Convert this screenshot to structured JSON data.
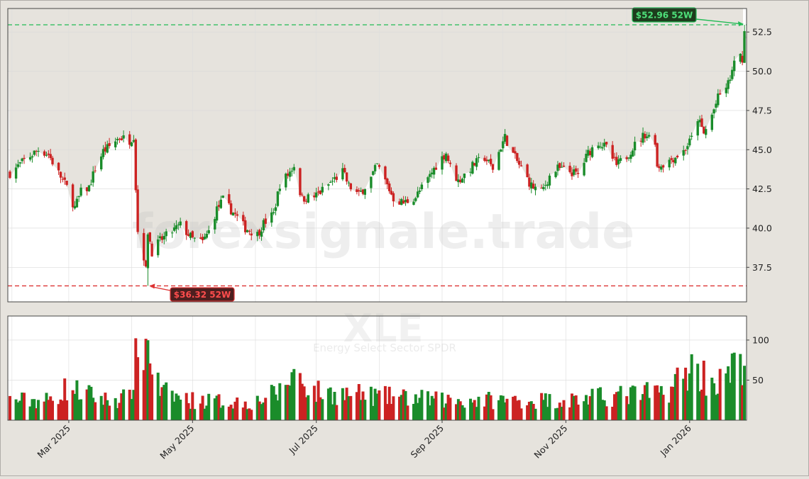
{
  "chart_data": {
    "type": "candlestick",
    "ticker": "XLE",
    "ticker_name": "Energy Select Sector SPDR",
    "watermark": "forexsignale.trade",
    "y_ticks": [
      "37.5",
      "40.0",
      "42.5",
      "45.0",
      "47.5",
      "50.0",
      "52.5"
    ],
    "vol_ticks": [
      "50",
      "100"
    ],
    "x_ticks": [
      {
        "label": "Mar 2025",
        "date": "2025-03-01"
      },
      {
        "label": "May 2025",
        "date": "2025-05-01"
      },
      {
        "label": "Jul 2025",
        "date": "2025-07-01"
      },
      {
        "label": "Sep 2025",
        "date": "2025-09-01"
      },
      {
        "label": "Nov 2025",
        "date": "2025-11-01"
      },
      {
        "label": "Jan 2026",
        "date": "2026-01-01"
      }
    ],
    "price_ylim": [
      35.3,
      54.0
    ],
    "volume_ylim": [
      0,
      130
    ],
    "x_range": [
      "2025-01-31",
      "2026-01-28"
    ],
    "high_52w": {
      "value": 52.96,
      "label": "$52.96 52W",
      "color": "#22bb55"
    },
    "low_52w": {
      "value": 36.32,
      "label": "$36.32 52W",
      "color": "#dd3333"
    },
    "colors": {
      "up": "#1a8c2a",
      "down": "#cc2222"
    },
    "price_path": [
      [
        "2025-01-31",
        43.5
      ],
      [
        "2025-02-07",
        44.3
      ],
      [
        "2025-02-14",
        45.0
      ],
      [
        "2025-02-19",
        44.7
      ],
      [
        "2025-02-24",
        43.5
      ],
      [
        "2025-02-28",
        42.6
      ],
      [
        "2025-03-04",
        41.3
      ],
      [
        "2025-03-07",
        42.3
      ],
      [
        "2025-03-11",
        42.6
      ],
      [
        "2025-03-14",
        43.8
      ],
      [
        "2025-03-18",
        44.9
      ],
      [
        "2025-03-21",
        45.2
      ],
      [
        "2025-03-26",
        45.8
      ],
      [
        "2025-03-31",
        45.6
      ],
      [
        "2025-04-02",
        45.9
      ],
      [
        "2025-04-03",
        42.6
      ],
      [
        "2025-04-04",
        39.8
      ],
      [
        "2025-04-07",
        38.2
      ],
      [
        "2025-04-08",
        37.3
      ],
      [
        "2025-04-09",
        39.8
      ],
      [
        "2025-04-11",
        38.5
      ],
      [
        "2025-04-15",
        39.2
      ],
      [
        "2025-04-21",
        39.8
      ],
      [
        "2025-04-25",
        40.2
      ],
      [
        "2025-05-01",
        39.3
      ],
      [
        "2025-05-06",
        39.1
      ],
      [
        "2025-05-09",
        39.8
      ],
      [
        "2025-05-13",
        41.2
      ],
      [
        "2025-05-16",
        41.8
      ],
      [
        "2025-05-21",
        41.0
      ],
      [
        "2025-05-27",
        40.0
      ],
      [
        "2025-06-02",
        39.6
      ],
      [
        "2025-06-05",
        40.3
      ],
      [
        "2025-06-10",
        40.9
      ],
      [
        "2025-06-13",
        42.8
      ],
      [
        "2025-06-17",
        43.4
      ],
      [
        "2025-06-20",
        44.0
      ],
      [
        "2025-06-23",
        42.3
      ],
      [
        "2025-06-24",
        41.9
      ],
      [
        "2025-06-30",
        42.0
      ],
      [
        "2025-07-03",
        42.3
      ],
      [
        "2025-07-09",
        43.0
      ],
      [
        "2025-07-14",
        43.6
      ],
      [
        "2025-07-17",
        42.7
      ],
      [
        "2025-07-22",
        42.1
      ],
      [
        "2025-07-28",
        43.2
      ],
      [
        "2025-07-31",
        44.0
      ],
      [
        "2025-08-04",
        43.0
      ],
      [
        "2025-08-08",
        41.9
      ],
      [
        "2025-08-13",
        41.6
      ],
      [
        "2025-08-19",
        42.0
      ],
      [
        "2025-08-25",
        43.1
      ],
      [
        "2025-08-29",
        44.0
      ],
      [
        "2025-09-03",
        44.8
      ],
      [
        "2025-09-05",
        43.9
      ],
      [
        "2025-09-09",
        43.0
      ],
      [
        "2025-09-12",
        43.4
      ],
      [
        "2025-09-17",
        44.1
      ],
      [
        "2025-09-22",
        44.5
      ],
      [
        "2025-09-26",
        43.8
      ],
      [
        "2025-09-30",
        45.2
      ],
      [
        "2025-10-02",
        45.8
      ],
      [
        "2025-10-06",
        44.7
      ],
      [
        "2025-10-10",
        43.8
      ],
      [
        "2025-10-15",
        42.7
      ],
      [
        "2025-10-20",
        42.3
      ],
      [
        "2025-10-24",
        43.3
      ],
      [
        "2025-10-28",
        43.8
      ],
      [
        "2025-11-03",
        43.6
      ],
      [
        "2025-11-07",
        43.4
      ],
      [
        "2025-11-12",
        44.8
      ],
      [
        "2025-11-17",
        45.5
      ],
      [
        "2025-11-21",
        45.1
      ],
      [
        "2025-11-26",
        44.0
      ],
      [
        "2025-12-01",
        44.6
      ],
      [
        "2025-12-05",
        45.3
      ],
      [
        "2025-12-10",
        46.0
      ],
      [
        "2025-12-15",
        45.6
      ],
      [
        "2025-12-16",
        43.9
      ],
      [
        "2025-12-22",
        44.3
      ],
      [
        "2025-12-29",
        44.9
      ],
      [
        "2026-01-02",
        45.7
      ],
      [
        "2026-01-05",
        47.0
      ],
      [
        "2026-01-08",
        46.0
      ],
      [
        "2026-01-12",
        47.2
      ],
      [
        "2026-01-15",
        48.3
      ],
      [
        "2026-01-20",
        49.2
      ],
      [
        "2026-01-23",
        50.4
      ],
      [
        "2026-01-26",
        51.3
      ],
      [
        "2026-01-27",
        50.3
      ],
      [
        "2026-01-28",
        52.96
      ]
    ],
    "volume_path": [
      [
        "2025-01-31",
        25
      ],
      [
        "2025-02-20",
        25
      ],
      [
        "2025-02-28",
        40
      ],
      [
        "2025-03-20",
        25
      ],
      [
        "2025-03-31",
        28
      ],
      [
        "2025-04-04",
        85
      ],
      [
        "2025-04-09",
        95
      ],
      [
        "2025-04-15",
        35
      ],
      [
        "2025-04-30",
        25
      ],
      [
        "2025-05-31",
        22
      ],
      [
        "2025-06-13",
        35
      ],
      [
        "2025-06-20",
        60
      ],
      [
        "2025-06-30",
        35
      ],
      [
        "2025-07-31",
        30
      ],
      [
        "2025-09-01",
        25
      ],
      [
        "2025-10-31",
        25
      ],
      [
        "2025-12-20",
        35
      ],
      [
        "2026-01-02",
        65
      ],
      [
        "2026-01-15",
        45
      ],
      [
        "2026-01-28",
        75
      ]
    ]
  }
}
